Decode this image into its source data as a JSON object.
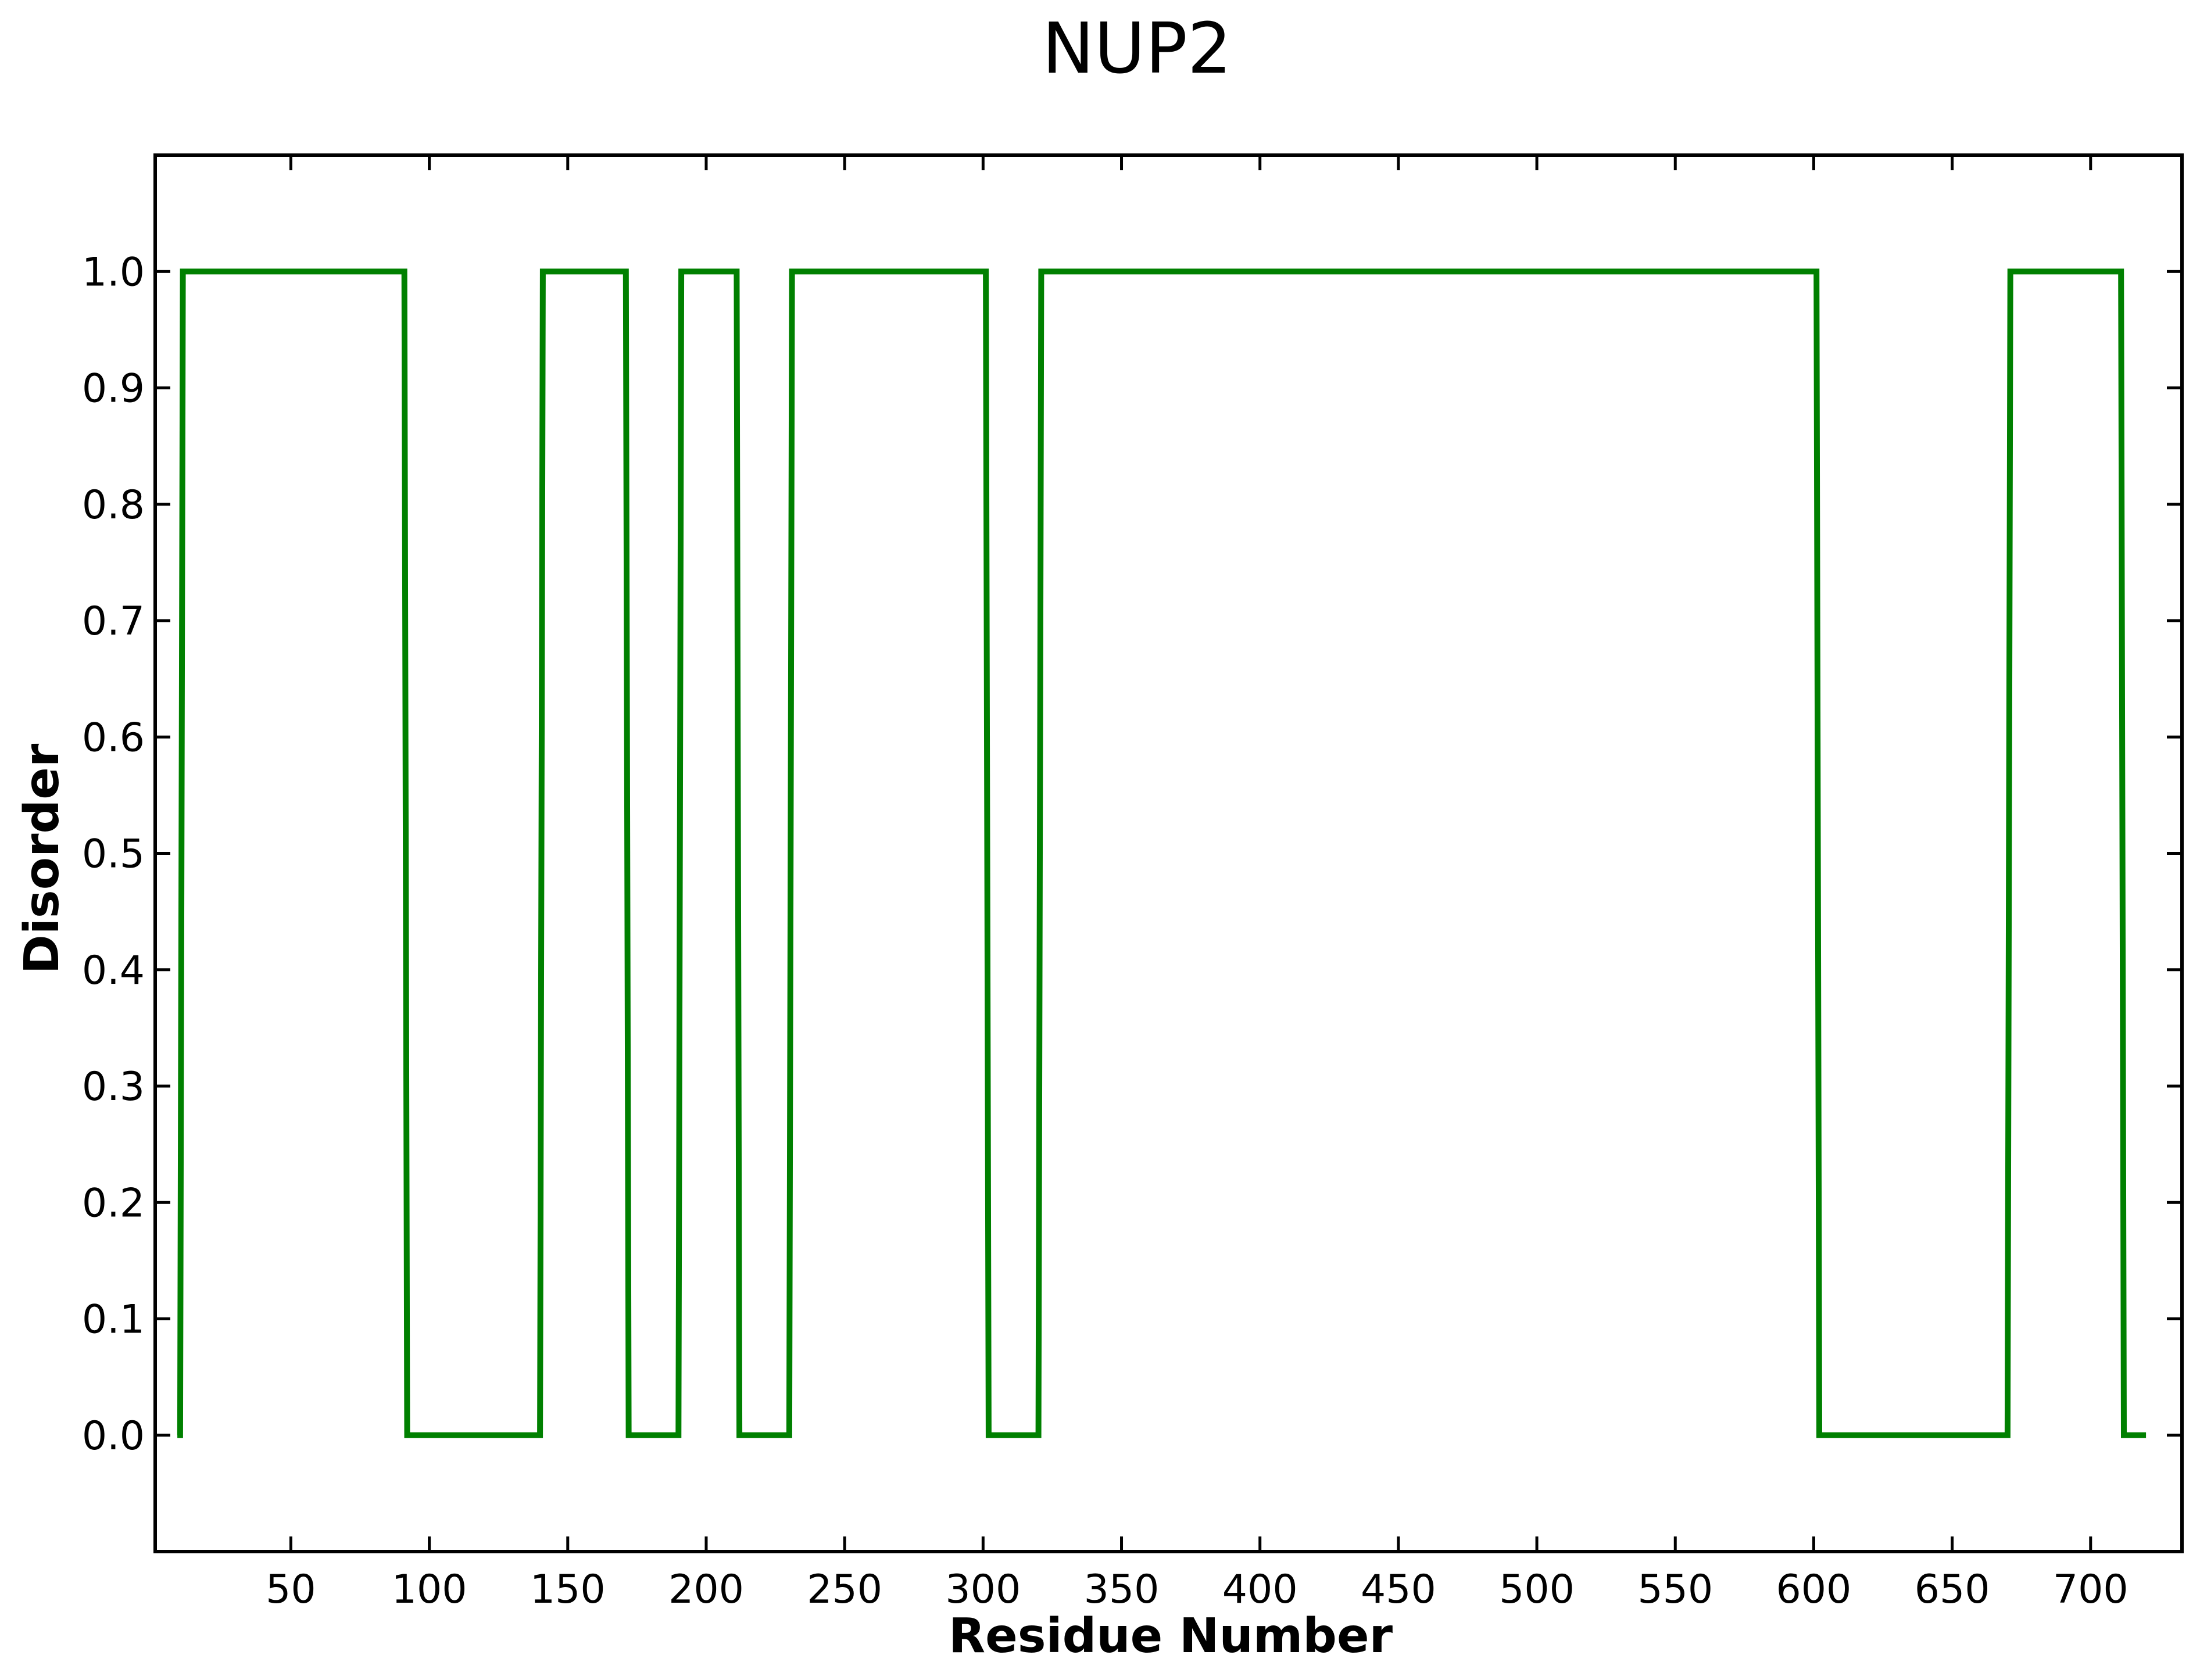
{
  "chart_data": {
    "type": "line",
    "title": "NUP2",
    "xlabel": "Residue Number",
    "ylabel": "Disorder",
    "xlim": [
      1,
      733
    ],
    "ylim": [
      -0.1,
      1.1
    ],
    "x_ticks": [
      50,
      100,
      150,
      200,
      250,
      300,
      350,
      400,
      450,
      500,
      550,
      600,
      650,
      700
    ],
    "y_ticks": [
      0.0,
      0.1,
      0.2,
      0.3,
      0.4,
      0.5,
      0.6,
      0.7,
      0.8,
      0.9,
      1.0
    ],
    "y_tick_labels": [
      "0.0",
      "0.1",
      "0.2",
      "0.3",
      "0.4",
      "0.5",
      "0.6",
      "0.7",
      "0.8",
      "0.9",
      "1.0"
    ],
    "grid": false,
    "series": [
      {
        "color": "#008000",
        "x": [
          9,
          10,
          11,
          91,
          92,
          140,
          141,
          171,
          172,
          190,
          191,
          211,
          212,
          230,
          231,
          301,
          302,
          320,
          321,
          601,
          602,
          670,
          671,
          711,
          712,
          720
        ],
        "y": [
          0,
          0,
          1,
          1,
          0,
          0,
          1,
          1,
          0,
          0,
          1,
          1,
          0,
          0,
          1,
          1,
          0,
          0,
          1,
          1,
          0,
          0,
          1,
          1,
          0,
          0
        ]
      }
    ]
  }
}
